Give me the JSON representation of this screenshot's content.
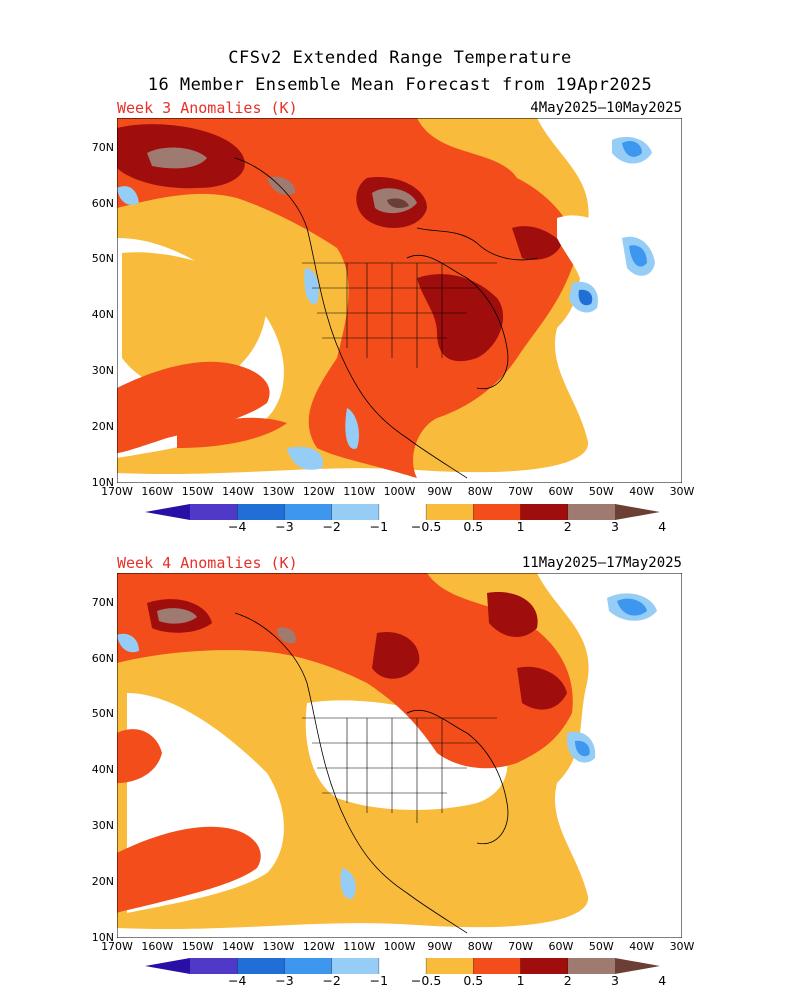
{
  "title": {
    "line1": "CFSv2 Extended Range Temperature",
    "line2": "16 Member Ensemble Mean Forecast from 19Apr2025"
  },
  "panels": [
    {
      "label": "Week 3 Anomalies (K)",
      "dates": "4May2025—10May2025"
    },
    {
      "label": "Week 4 Anomalies (K)",
      "dates": "11May2025—17May2025"
    }
  ],
  "axes": {
    "lat_labels": [
      "70N",
      "60N",
      "50N",
      "40N",
      "30N",
      "20N",
      "10N"
    ],
    "lon_labels": [
      "170W",
      "160W",
      "150W",
      "140W",
      "130W",
      "120W",
      "110W",
      "100W",
      "90W",
      "80W",
      "70W",
      "60W",
      "50W",
      "40W",
      "30W"
    ]
  },
  "legend": {
    "ticks": [
      "−4",
      "−3",
      "−2",
      "−1",
      "−0.5",
      "0.5",
      "1",
      "2",
      "3",
      "4"
    ],
    "colors": [
      "#2a0fa6",
      "#5038c8",
      "#1f6fd6",
      "#3e97ef",
      "#96cdf7",
      "#ffffff",
      "#f8bb3c",
      "#f24d1a",
      "#a00d0d",
      "#9e7a70",
      "#6b3f33"
    ]
  }
}
